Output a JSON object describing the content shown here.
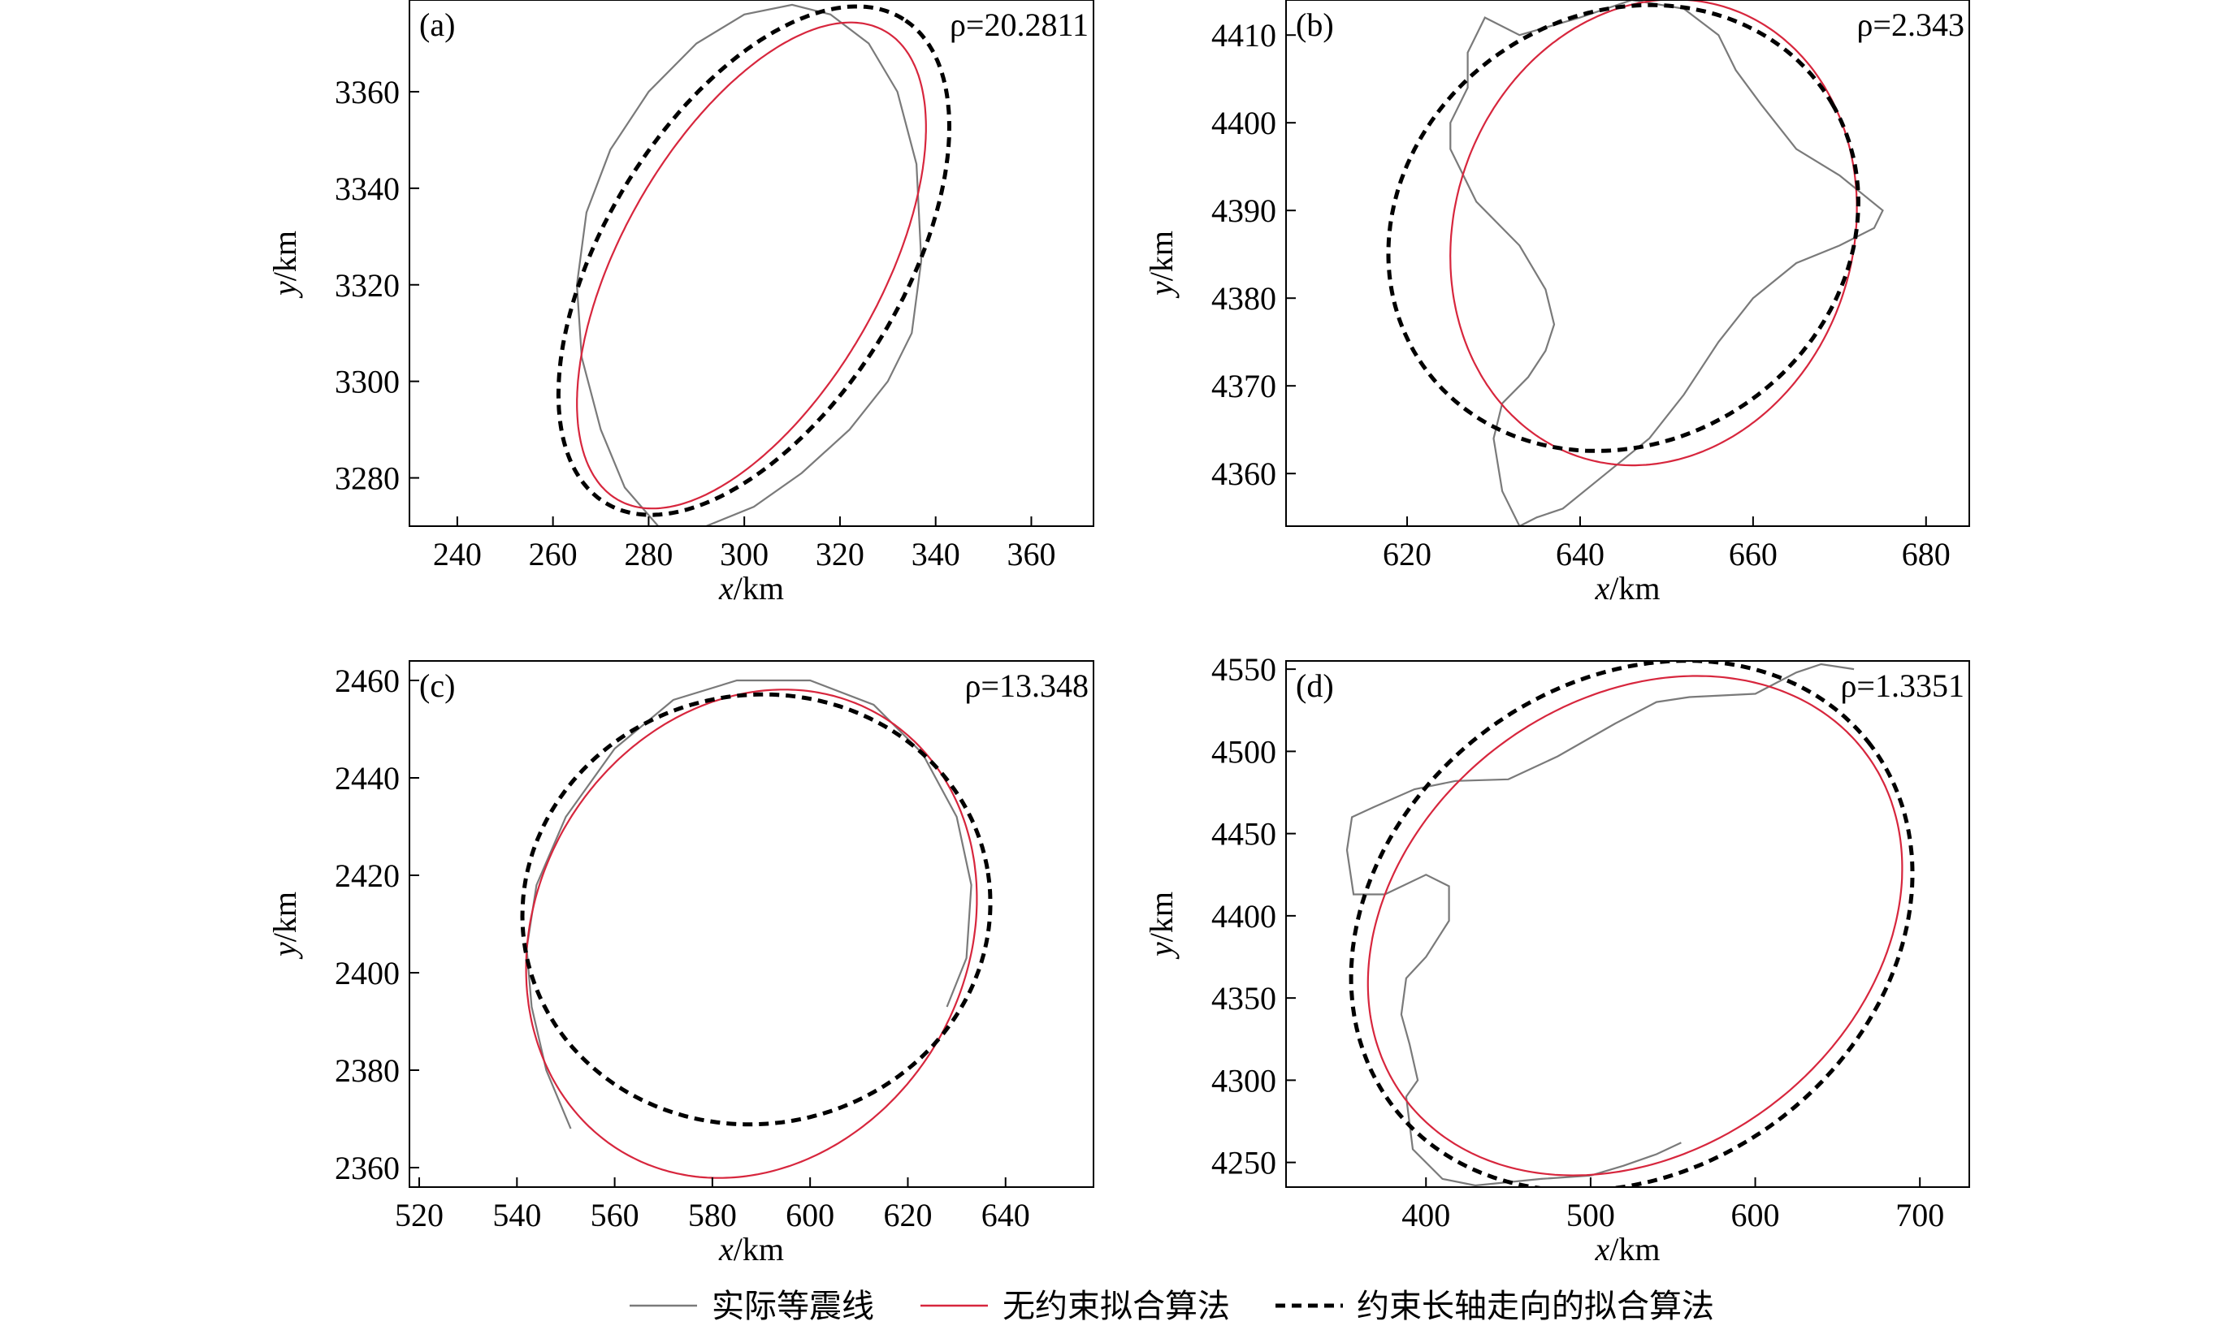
{
  "legend": {
    "actual": "实际等震线",
    "unconstrained": "无约束拟合算法",
    "constrained": "约束长轴走向的拟合算法"
  },
  "colors": {
    "actual": "#7a7a7a",
    "unconstrained": "#d7263d",
    "constrained": "#000000"
  },
  "chart_data": [
    {
      "type": "line",
      "panel": "(a)",
      "rho": "ρ=20.2811",
      "xlabel": "x/km",
      "ylabel": "y/km",
      "xlim": [
        230,
        373
      ],
      "ylim": [
        3270,
        3379
      ],
      "xticks": [
        240,
        260,
        280,
        300,
        320,
        340,
        360
      ],
      "yticks": [
        3280,
        3300,
        3320,
        3340,
        3360
      ],
      "series": [
        {
          "key": "actual",
          "x": [
            282,
            275,
            270,
            266,
            265,
            267,
            272,
            280,
            290,
            300,
            310,
            318,
            326,
            332,
            336,
            337,
            335,
            330,
            322,
            312,
            302,
            292,
            285,
            282
          ],
          "y": [
            3270,
            3278,
            3290,
            3305,
            3320,
            3335,
            3348,
            3360,
            3370,
            3376,
            3378,
            3376,
            3370,
            3360,
            3345,
            3325,
            3310,
            3300,
            3290,
            3281,
            3274,
            3270,
            3270,
            3270
          ]
        },
        {
          "key": "unconstrained",
          "ellipse": {
            "cx": 301.5,
            "cy": 3324,
            "a": 56,
            "b": 27,
            "angle_deg": 60
          }
        },
        {
          "key": "constrained",
          "ellipse": {
            "cx": 302,
            "cy": 3325,
            "a": 59,
            "b": 31,
            "angle_deg": 58
          }
        }
      ]
    },
    {
      "type": "line",
      "panel": "(b)",
      "rho": "ρ=2.343",
      "xlabel": "x/km",
      "ylabel": "y/km",
      "xlim": [
        606,
        685
      ],
      "ylim": [
        4354,
        4414
      ],
      "xticks": [
        620,
        640,
        660,
        680
      ],
      "yticks": [
        4360,
        4370,
        4380,
        4390,
        4400,
        4410
      ],
      "series": [
        {
          "key": "actual",
          "x": [
            633,
            631,
            630,
            631,
            634,
            636,
            637,
            636,
            633,
            628,
            625,
            625,
            627,
            627,
            629,
            633,
            640,
            646,
            652,
            656,
            658,
            661,
            665,
            670,
            675,
            674,
            670,
            665,
            660,
            656,
            652,
            648,
            643,
            638,
            635,
            633
          ],
          "y": [
            4354,
            4358,
            4364,
            4368,
            4371,
            4374,
            4377,
            4381,
            4386,
            4391,
            4397,
            4400,
            4404,
            4408,
            4412,
            4410,
            4412,
            4414,
            4413,
            4410,
            4406,
            4402,
            4397,
            4394,
            4390,
            4388,
            4386,
            4384,
            4380,
            4375,
            4369,
            4364,
            4360,
            4356,
            4355,
            4354
          ]
        },
        {
          "key": "unconstrained",
          "ellipse": {
            "cx": 648.5,
            "cy": 4387.5,
            "a": 27,
            "b": 23,
            "angle_deg": 70
          }
        },
        {
          "key": "constrained",
          "ellipse": {
            "cx": 645,
            "cy": 4388,
            "a": 28,
            "b": 24.5,
            "angle_deg": 30
          }
        }
      ]
    },
    {
      "type": "line",
      "panel": "(c)",
      "rho": "ρ=13.348",
      "xlabel": "x/km",
      "ylabel": "y/km",
      "xlim": [
        518,
        658
      ],
      "ylim": [
        2356,
        2464
      ],
      "xticks": [
        520,
        540,
        560,
        580,
        600,
        620,
        640
      ],
      "yticks": [
        2360,
        2380,
        2400,
        2420,
        2440,
        2460
      ],
      "series": [
        {
          "key": "actual",
          "x": [
            551,
            546,
            543,
            542,
            544,
            550,
            560,
            572,
            585,
            600,
            613,
            623,
            630,
            633,
            632,
            628
          ],
          "y": [
            2368,
            2380,
            2393,
            2405,
            2418,
            2432,
            2446,
            2456,
            2460,
            2460,
            2455,
            2445,
            2432,
            2418,
            2403,
            2393
          ]
        },
        {
          "key": "unconstrained",
          "ellipse": {
            "cx": 588,
            "cy": 2408,
            "a": 52,
            "b": 44,
            "angle_deg": 60
          }
        },
        {
          "key": "constrained",
          "ellipse": {
            "cx": 589,
            "cy": 2413,
            "a": 48,
            "b": 44,
            "angle_deg": 10
          }
        }
      ]
    },
    {
      "type": "line",
      "panel": "(d)",
      "rho": "ρ=1.3351",
      "xlabel": "x/km",
      "ylabel": "y/km",
      "xlim": [
        315,
        730
      ],
      "ylim": [
        4235,
        4555
      ],
      "xticks": [
        400,
        500,
        600,
        700
      ],
      "yticks": [
        4250,
        4300,
        4350,
        4400,
        4450,
        4500,
        4550
      ],
      "series": [
        {
          "key": "actual",
          "x": [
            660,
            640,
            625,
            600,
            560,
            540,
            515,
            480,
            450,
            418,
            393,
            368,
            355,
            352,
            356,
            375,
            400,
            414,
            414,
            400,
            388,
            385,
            390,
            395,
            388,
            392,
            410,
            430,
            470,
            500,
            520,
            540,
            555
          ],
          "y": [
            4550,
            4553,
            4548,
            4535,
            4533,
            4530,
            4517,
            4497,
            4483,
            4482,
            4477,
            4466,
            4460,
            4440,
            4413,
            4413,
            4425,
            4418,
            4397,
            4375,
            4362,
            4340,
            4322,
            4300,
            4290,
            4258,
            4240,
            4236,
            4240,
            4242,
            4248,
            4255,
            4262
          ]
        },
        {
          "key": "unconstrained",
          "ellipse": {
            "cx": 527,
            "cy": 4394,
            "a": 175,
            "b": 137,
            "angle_deg": 37
          }
        },
        {
          "key": "constrained",
          "ellipse": {
            "cx": 525,
            "cy": 4394,
            "a": 182,
            "b": 148,
            "angle_deg": 37
          }
        }
      ]
    }
  ]
}
